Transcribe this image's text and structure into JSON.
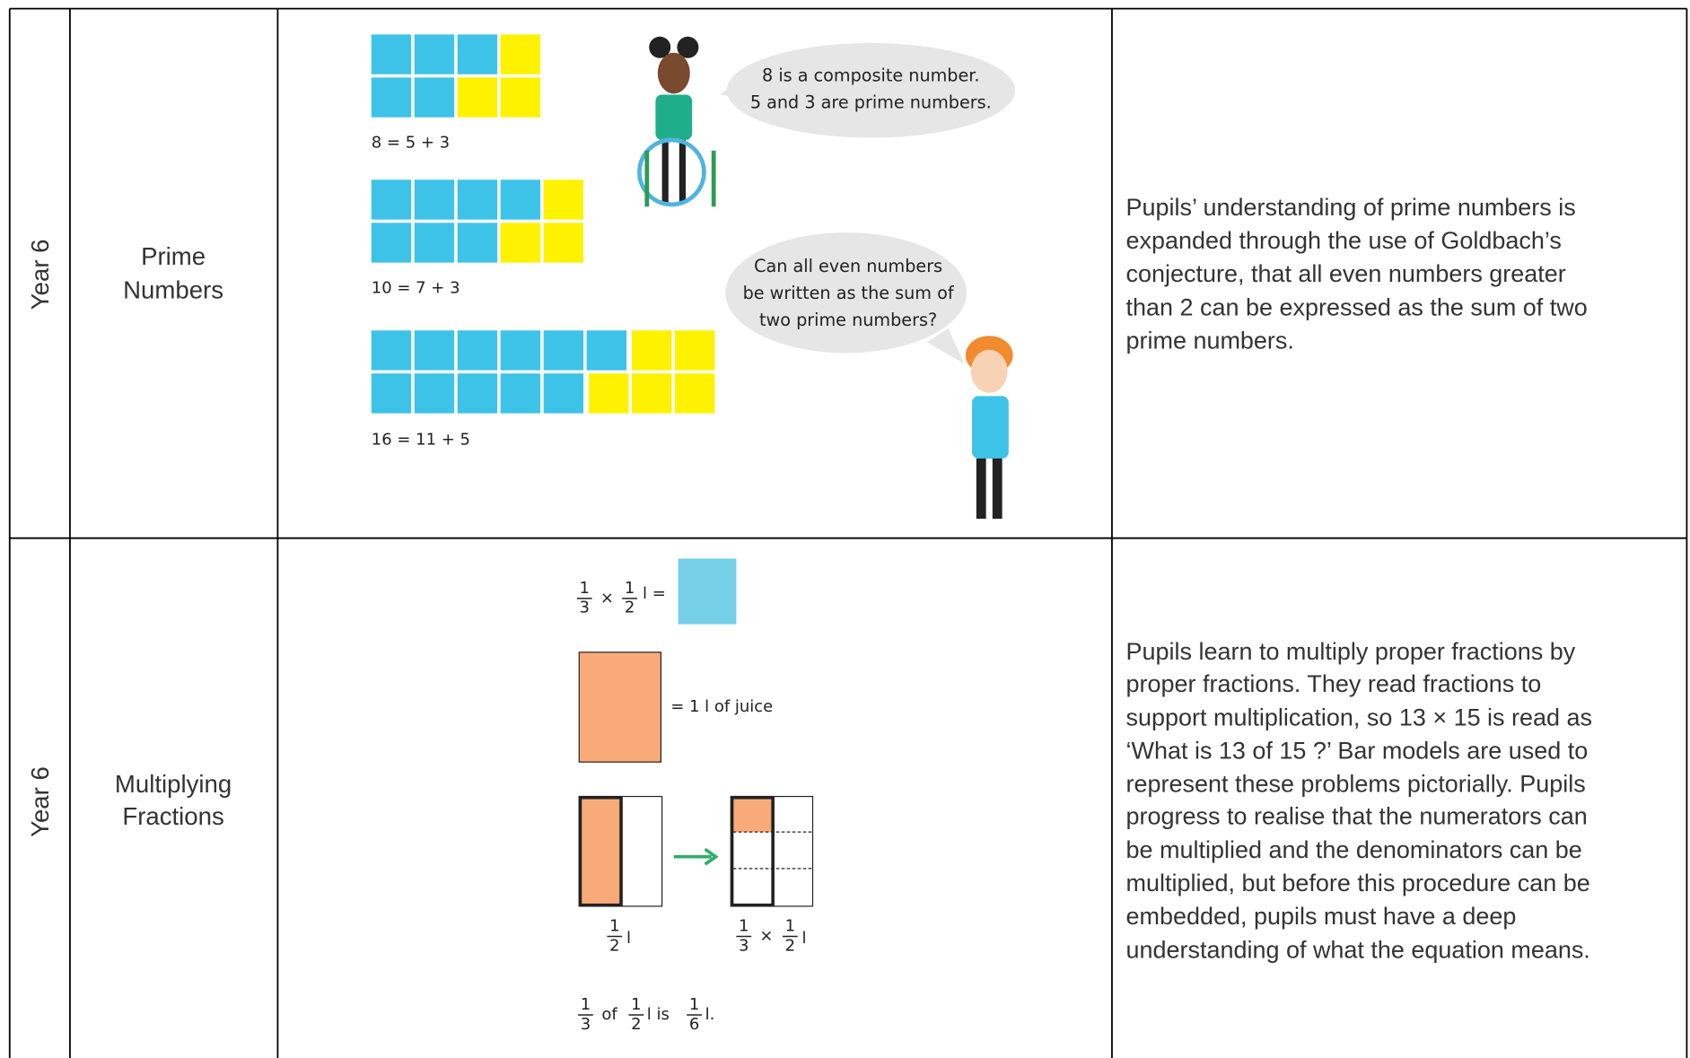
{
  "table": {
    "rows": [
      {
        "year": "Year 6",
        "topic": [
          "Prime",
          "Numbers"
        ],
        "illustration": {
          "equations": [
            "8 = 5 + 3",
            "10 = 7 + 3",
            "16 = 11 + 5"
          ],
          "bubbles": [
            [
              "8 is a composite number.",
              "5 and 3 are prime numbers."
            ],
            [
              "Can all even numbers",
              "be written as the sum of",
              "two prime numbers?"
            ]
          ]
        },
        "description": [
          "Pupils’ understanding of prime numbers is",
          "expanded through the use of Goldbach’s",
          "conjecture, that all even numbers greater",
          "than 2 can be expressed as the sum of two",
          "prime numbers."
        ]
      },
      {
        "year": "Year 6",
        "topic": [
          "Multiplying",
          "Fractions"
        ],
        "illustration": {
          "top": [
            "1",
            "3",
            "×",
            "1",
            "2",
            "l ="
          ],
          "juice": "= 1 l of juice",
          "half": [
            "1",
            "2",
            "l"
          ],
          "third_of_half": [
            "1",
            "3",
            "×",
            "1",
            "2",
            "l"
          ],
          "result": [
            "1",
            "3",
            "of",
            "1",
            "2",
            "l is",
            "1",
            "6",
            "l."
          ]
        },
        "description": [
          "Pupils learn to multiply proper fractions by",
          "proper fractions. They read fractions to",
          "support multiplication, so 13 × 15 is read as",
          "‘What is 13 of 15 ?’ Bar models are used to",
          "represent these problems pictorially. Pupils",
          "progress to realise that the numerators can",
          "be multiplied and the denominators can be",
          "multiplied, but before this procedure can be",
          "embedded, pupils must have a deep",
          "understanding of what the equation means."
        ]
      }
    ]
  }
}
